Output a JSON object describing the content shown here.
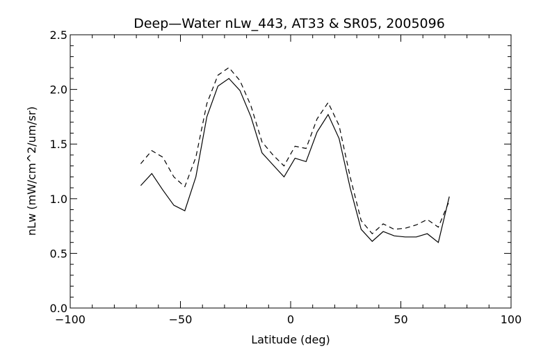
{
  "chart_data": {
    "type": "line",
    "title": "Deep—Water nLw_443, AT33 & SR05, 2005096",
    "xlabel": "Latitude (deg)",
    "ylabel": "nLw (mW/cm^2/um/sr)",
    "xlim": [
      -100,
      100
    ],
    "ylim": [
      0.0,
      2.5
    ],
    "x_ticks": [
      -100,
      -50,
      0,
      50,
      100
    ],
    "x_tick_labels": [
      "−100",
      "−50",
      "0",
      "50",
      "100"
    ],
    "y_ticks": [
      0.0,
      0.5,
      1.0,
      1.5,
      2.0,
      2.5
    ],
    "y_tick_labels": [
      "0.0",
      "0.5",
      "1.0",
      "1.5",
      "2.0",
      "2.5"
    ],
    "x_minor_step": 10,
    "y_minor_step": 0.1,
    "grid": false,
    "series": [
      {
        "style": "solid",
        "x": [
          -68,
          -63,
          -58,
          -53,
          -48,
          -43,
          -38,
          -33,
          -28,
          -23,
          -18,
          -13,
          -8,
          -3,
          2,
          7,
          12,
          17,
          22,
          27,
          32,
          37,
          42,
          47,
          52,
          57,
          62,
          67,
          72
        ],
        "y": [
          1.12,
          1.23,
          1.08,
          0.94,
          0.89,
          1.2,
          1.75,
          2.03,
          2.1,
          1.99,
          1.75,
          1.42,
          1.31,
          1.2,
          1.37,
          1.34,
          1.61,
          1.77,
          1.55,
          1.1,
          0.72,
          0.61,
          0.7,
          0.66,
          0.65,
          0.65,
          0.68,
          0.6,
          1.02
        ]
      },
      {
        "style": "dashed",
        "x": [
          -68,
          -63,
          -58,
          -53,
          -48,
          -43,
          -38,
          -33,
          -28,
          -23,
          -18,
          -13,
          -8,
          -3,
          2,
          7,
          12,
          17,
          22,
          27,
          32,
          37,
          42,
          47,
          52,
          57,
          62,
          67,
          72
        ],
        "y": [
          1.32,
          1.44,
          1.38,
          1.2,
          1.11,
          1.38,
          1.87,
          2.13,
          2.2,
          2.08,
          1.85,
          1.52,
          1.4,
          1.3,
          1.48,
          1.46,
          1.73,
          1.88,
          1.67,
          1.2,
          0.8,
          0.68,
          0.77,
          0.72,
          0.73,
          0.76,
          0.81,
          0.74,
          0.98
        ]
      }
    ]
  }
}
